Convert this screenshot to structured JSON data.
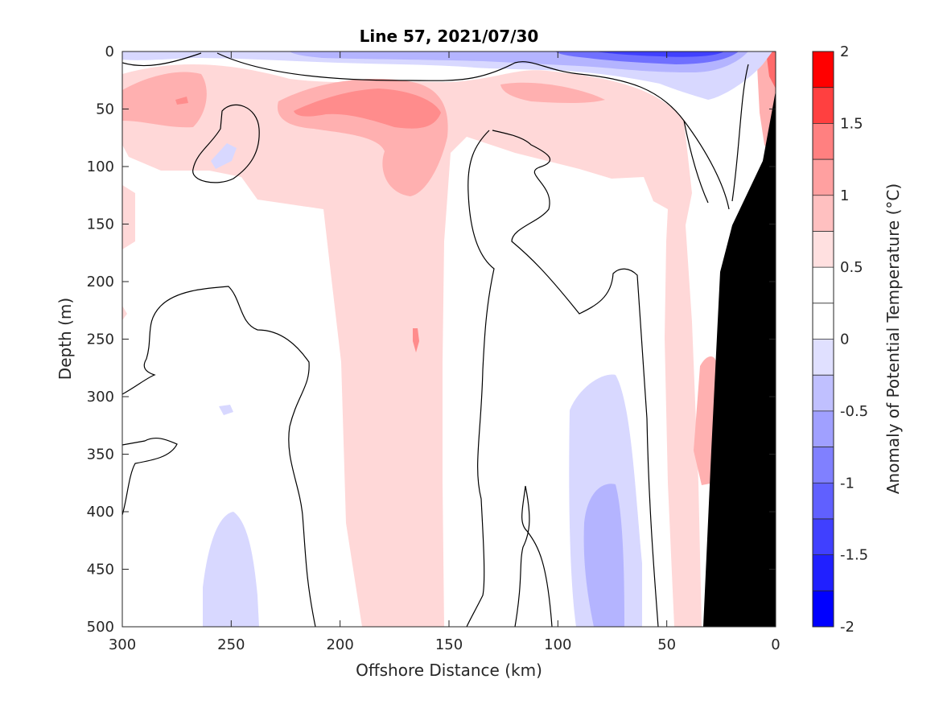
{
  "chart_data": {
    "type": "heatmap",
    "title": "Line 57, 2021/07/30",
    "xlabel": "Offshore Distance (km)",
    "ylabel": "Depth (m)",
    "x_ticks": [
      "300",
      "250",
      "200",
      "150",
      "100",
      "50",
      "0"
    ],
    "y_ticks": [
      "0",
      "50",
      "100",
      "150",
      "200",
      "250",
      "300",
      "350",
      "400",
      "450",
      "500"
    ],
    "xlim": [
      300,
      0
    ],
    "ylim": [
      0,
      500
    ],
    "x_reversed": true,
    "y_reversed": true,
    "colorbar": {
      "label": "Anomaly of Potential Temperature (°C)",
      "ticks": [
        "2",
        "1.5",
        "1",
        "0.5",
        "0",
        "-0.5",
        "-1",
        "-1.5",
        "-2"
      ],
      "range": [
        -2,
        2
      ],
      "levels": [
        -2,
        -1.75,
        -1.5,
        -1.25,
        -1,
        -0.75,
        -0.5,
        -0.25,
        0,
        0.25,
        0.5,
        0.75,
        1,
        1.25,
        1.5,
        1.75,
        2
      ],
      "colors": [
        "#0000ff",
        "#2020ff",
        "#4040ff",
        "#6060ff",
        "#8080ff",
        "#a0a0ff",
        "#c0c0ff",
        "#e0e0ff",
        "#ffffff",
        "#ffffff",
        "#ffe0e0",
        "#ffc0c0",
        "#ffa0a0",
        "#ff8080",
        "#ff4040",
        "#ff0000"
      ]
    },
    "features": [
      {
        "kind": "warm_anomaly",
        "offshore_km": [
          0,
          190
        ],
        "depth_m": [
          20,
          500
        ],
        "approx_value": 0.35,
        "note": "column 150-200 km"
      },
      {
        "kind": "warm_anomaly",
        "offshore_km": [
          150,
          230
        ],
        "depth_m": [
          30,
          80
        ],
        "approx_value": 0.9
      },
      {
        "kind": "cold_anomaly",
        "offshore_km": [
          40,
          110
        ],
        "depth_m": [
          0,
          15
        ],
        "approx_value": -1.1
      },
      {
        "kind": "cold_anomaly",
        "offshore_km": [
          60,
          95
        ],
        "depth_m": [
          280,
          500
        ],
        "approx_value": -0.4
      },
      {
        "kind": "cold_anomaly",
        "offshore_km": [
          65,
          85
        ],
        "depth_m": [
          375,
          500
        ],
        "approx_value": -0.7
      },
      {
        "kind": "cold_anomaly",
        "offshore_km": [
          235,
          265
        ],
        "depth_m": [
          420,
          500
        ],
        "approx_value": -0.35
      },
      {
        "kind": "warm_anomaly",
        "offshore_km": [
          0,
          8
        ],
        "depth_m": [
          0,
          40
        ],
        "approx_value": 1.6
      },
      {
        "kind": "bathymetry",
        "offshore_km": [
          0,
          33
        ],
        "depth_m": [
          35,
          500
        ]
      }
    ]
  }
}
